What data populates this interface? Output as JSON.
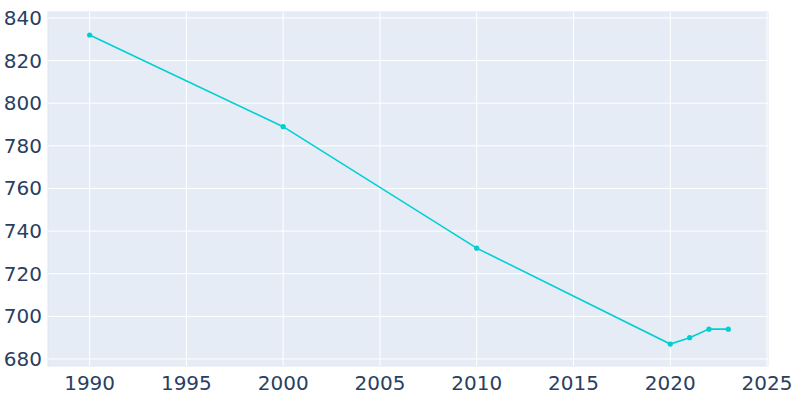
{
  "chart_data": {
    "type": "line",
    "x": [
      1990,
      2000,
      2010,
      2020,
      2021,
      2022,
      2023
    ],
    "values": [
      832,
      789,
      732,
      687,
      690,
      694,
      694
    ],
    "color": "#00cfd2",
    "marker": "circle",
    "xlim": [
      1987.85,
      2025.05
    ],
    "xticks": [
      1990,
      1995,
      2000,
      2005,
      2010,
      2015,
      2020,
      2025
    ],
    "ylim": [
      676.7,
      842.8
    ],
    "yticks": [
      680,
      700,
      720,
      740,
      760,
      780,
      800,
      820,
      840
    ],
    "grid": true
  }
}
